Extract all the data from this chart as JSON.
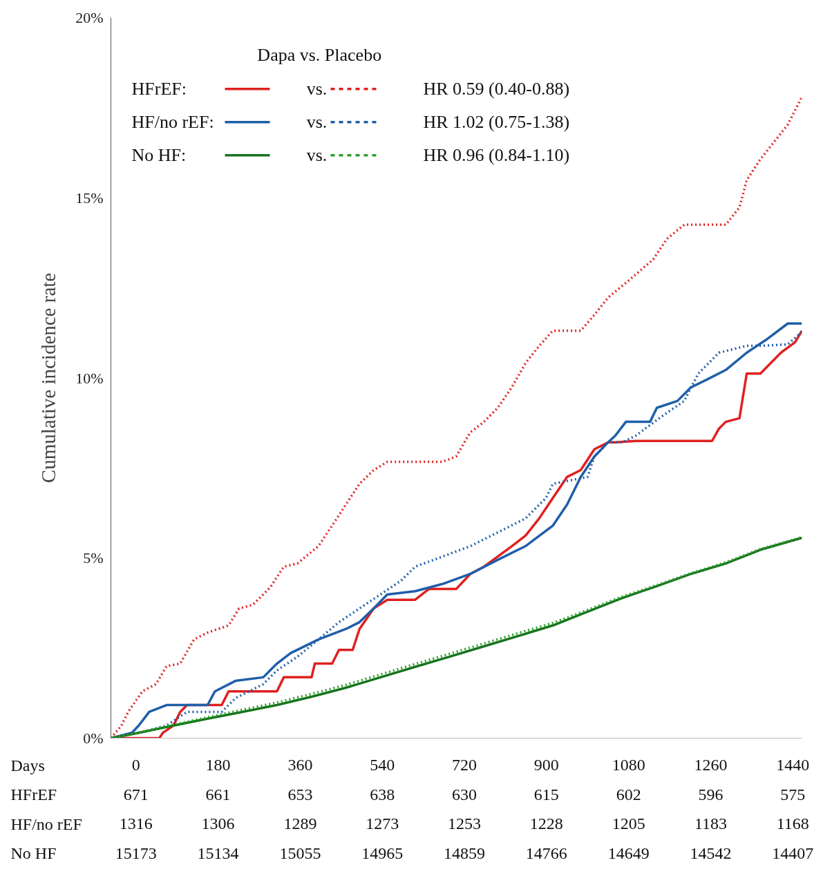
{
  "chart_data": {
    "type": "line",
    "ylabel": "Cumulative incidence rate",
    "xlabel": "Days",
    "legend_title": "Dapa  vs. Placebo",
    "legend": "top left",
    "grid": false,
    "xlim": [
      -55,
      1460
    ],
    "xticks": [
      0,
      180,
      360,
      540,
      720,
      900,
      1080,
      1260,
      1440
    ],
    "ylim": [
      0,
      20
    ],
    "yticks": [
      {
        "value": 0,
        "label": "0%"
      },
      {
        "value": 5,
        "label": "5%"
      },
      {
        "value": 10,
        "label": "10%"
      },
      {
        "value": 15,
        "label": "15%"
      },
      {
        "value": 20,
        "label": "20%"
      }
    ],
    "series": [
      {
        "name": "HFrEF:",
        "color": "#e02020",
        "line_style": "solid",
        "x": [
          -55,
          51,
          59,
          82,
          97,
          112,
          188,
          203,
          309,
          324,
          385,
          392,
          430,
          445,
          475,
          490,
          521,
          551,
          612,
          642,
          702,
          733,
          763,
          793,
          824,
          854,
          884,
          914,
          945,
          975,
          1005,
          1035,
          1051,
          1096,
          1263,
          1278,
          1293,
          1323,
          1339,
          1369,
          1414,
          1445,
          1460
        ],
        "values": [
          0,
          0,
          0.15,
          0.35,
          0.73,
          0.92,
          0.92,
          1.3,
          1.3,
          1.69,
          1.69,
          2.07,
          2.07,
          2.45,
          2.45,
          3.03,
          3.6,
          3.84,
          3.84,
          4.14,
          4.14,
          4.56,
          4.76,
          5.04,
          5.33,
          5.62,
          6.1,
          6.67,
          7.25,
          7.44,
          8.02,
          8.21,
          8.21,
          8.25,
          8.25,
          8.59,
          8.78,
          8.88,
          10.12,
          10.12,
          10.7,
          10.99,
          11.31
        ]
      },
      {
        "color": "#e02020",
        "line_style": "dotted",
        "x": [
          -55,
          -32,
          -17,
          14,
          44,
          67,
          97,
          127,
          157,
          203,
          226,
          256,
          294,
          324,
          354,
          400,
          430,
          460,
          490,
          521,
          551,
          612,
          672,
          702,
          733,
          763,
          793,
          824,
          854,
          884,
          914,
          975,
          1005,
          1035,
          1081,
          1134,
          1164,
          1202,
          1293,
          1323,
          1339,
          1369,
          1399,
          1429,
          1460
        ],
        "values": [
          0,
          0.35,
          0.73,
          1.3,
          1.5,
          2.0,
          2.07,
          2.74,
          2.93,
          3.13,
          3.6,
          3.7,
          4.18,
          4.76,
          4.85,
          5.33,
          5.9,
          6.48,
          7.06,
          7.44,
          7.67,
          7.67,
          7.67,
          7.82,
          8.49,
          8.78,
          9.17,
          9.74,
          10.41,
          10.89,
          11.31,
          11.31,
          11.75,
          12.23,
          12.71,
          13.29,
          13.86,
          14.25,
          14.25,
          14.73,
          15.49,
          16.07,
          16.55,
          17.03,
          17.8
        ]
      },
      {
        "name": "HF/no rEF:",
        "color": "#1f5ea8",
        "line_style": "solid",
        "x": [
          -55,
          -9,
          6,
          29,
          67,
          157,
          173,
          218,
          279,
          309,
          339,
          400,
          460,
          490,
          521,
          551,
          612,
          672,
          733,
          793,
          854,
          914,
          945,
          975,
          1005,
          1035,
          1051,
          1074,
          1127,
          1142,
          1187,
          1217,
          1248,
          1293,
          1339,
          1384,
          1429,
          1460
        ],
        "values": [
          0,
          0.15,
          0.35,
          0.73,
          0.92,
          0.92,
          1.3,
          1.59,
          1.69,
          2.07,
          2.36,
          2.74,
          3.03,
          3.22,
          3.6,
          3.99,
          4.08,
          4.28,
          4.56,
          4.95,
          5.33,
          5.9,
          6.48,
          7.25,
          7.82,
          8.21,
          8.4,
          8.78,
          8.78,
          9.17,
          9.36,
          9.74,
          9.93,
          10.22,
          10.7,
          11.08,
          11.51,
          11.51
        ]
      },
      {
        "color": "#1f5ea8",
        "line_style": "dotted",
        "x": [
          -55,
          6,
          67,
          112,
          188,
          218,
          279,
          309,
          354,
          400,
          445,
          490,
          536,
          581,
          612,
          672,
          733,
          793,
          854,
          899,
          914,
          990,
          1005,
          1035,
          1066,
          1096,
          1157,
          1202,
          1217,
          1233,
          1278,
          1339,
          1369,
          1429,
          1460
        ],
        "values": [
          0,
          0.15,
          0.35,
          0.73,
          0.73,
          1.11,
          1.5,
          1.88,
          2.26,
          2.74,
          3.22,
          3.6,
          3.99,
          4.37,
          4.76,
          5.04,
          5.33,
          5.71,
          6.1,
          6.67,
          7.06,
          7.25,
          7.82,
          8.21,
          8.21,
          8.4,
          8.97,
          9.36,
          9.74,
          10.12,
          10.7,
          10.89,
          10.89,
          10.93,
          11.28
        ]
      },
      {
        "name": "No HF:",
        "color": "#16741c",
        "line_style": "solid",
        "x": [
          -55,
          6,
          82,
          157,
          233,
          309,
          385,
          460,
          536,
          612,
          687,
          763,
          839,
          914,
          990,
          1066,
          1142,
          1217,
          1293,
          1369,
          1460
        ],
        "values": [
          0,
          0.15,
          0.35,
          0.54,
          0.73,
          0.92,
          1.15,
          1.4,
          1.69,
          1.98,
          2.26,
          2.55,
          2.84,
          3.13,
          3.51,
          3.89,
          4.22,
          4.56,
          4.85,
          5.23,
          5.56
        ]
      },
      {
        "color": "#2ba02b",
        "line_style": "dotted",
        "x": [
          -55,
          6,
          82,
          157,
          233,
          309,
          385,
          460,
          536,
          612,
          687,
          763,
          839,
          914,
          990,
          1066,
          1142,
          1217,
          1293,
          1369,
          1460
        ],
        "values": [
          0,
          0.15,
          0.37,
          0.58,
          0.79,
          0.99,
          1.23,
          1.48,
          1.77,
          2.06,
          2.34,
          2.63,
          2.92,
          3.2,
          3.56,
          3.93,
          4.25,
          4.58,
          4.88,
          5.25,
          5.58
        ]
      }
    ],
    "annotations": [
      "vs.",
      "HR 0.59 (0.40-0.88)",
      "vs.",
      "HR 1.02 (0.75-1.38)",
      "vs.",
      "HR 0.96 (0.84-1.10)",
      "HFrEF",
      "671",
      "661",
      "653",
      "638",
      "630",
      "615",
      "602",
      "596",
      "575",
      "HF/no rEF",
      "1316",
      "1306",
      "1289",
      "1273",
      "1253",
      "1228",
      "1205",
      "1183",
      "1168",
      "No HF",
      "15173",
      "15134",
      "15055",
      "14965",
      "14859",
      "14766",
      "14649",
      "14542",
      "14407"
    ]
  }
}
